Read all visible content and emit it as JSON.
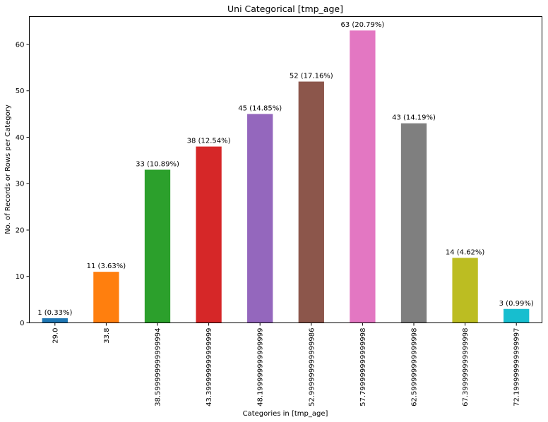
{
  "chart_data": {
    "type": "bar",
    "title": "Uni Categorical [tmp_age]",
    "xlabel": "Categories in [tmp_age]",
    "ylabel": "No. of Records or Rows per Category",
    "categories": [
      "29.0",
      "33.8",
      "38.599999999999994",
      "43.399999999999999",
      "48.199999999999999",
      "52.999999999999986",
      "57.799999999999998",
      "62.599999999999998",
      "67.399999999999998",
      "72.199999999999997"
    ],
    "values": [
      1,
      11,
      33,
      38,
      45,
      52,
      63,
      43,
      14,
      3
    ],
    "percentages": [
      "0.33%",
      "3.63%",
      "10.89%",
      "12.54%",
      "14.85%",
      "17.16%",
      "20.79%",
      "14.19%",
      "4.62%",
      "0.99%"
    ],
    "bar_labels": [
      "1 (0.33%)",
      "11 (3.63%)",
      "33 (10.89%)",
      "38 (12.54%)",
      "45 (14.85%)",
      "52 (17.16%)",
      "63 (20.79%)",
      "43 (14.19%)",
      "14 (4.62%)",
      "3 (0.99%)"
    ],
    "colors": [
      "#1f77b4",
      "#ff7f0e",
      "#2ca02c",
      "#d62728",
      "#9467bd",
      "#8c564b",
      "#e377c2",
      "#7f7f7f",
      "#bcbd22",
      "#17becf"
    ],
    "yticks": [
      0,
      10,
      20,
      30,
      40,
      50,
      60
    ],
    "ylim": [
      0,
      66
    ],
    "grid": false,
    "legend": null
  }
}
